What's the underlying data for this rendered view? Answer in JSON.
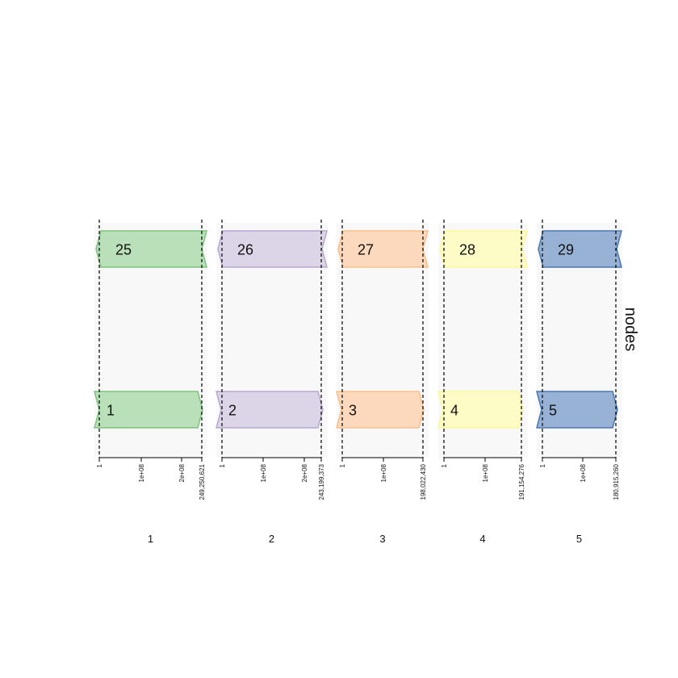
{
  "facet_label": "nodes",
  "panels": [
    {
      "id": "1",
      "label": "1",
      "fill": "#b9e0b9",
      "stroke": "#7cc47c",
      "top_node": "25",
      "bottom_node": "1",
      "length_label": "249,250,621",
      "ticks": [
        {
          "label": "1"
        },
        {
          "label": "1e+08"
        },
        {
          "label": "2e+08"
        }
      ]
    },
    {
      "id": "2",
      "label": "2",
      "fill": "#dcd5e8",
      "stroke": "#b7a7d1",
      "top_node": "26",
      "bottom_node": "2",
      "length_label": "243,199,373",
      "ticks": [
        {
          "label": "1"
        },
        {
          "label": "1e+08"
        },
        {
          "label": "2e+08"
        }
      ]
    },
    {
      "id": "3",
      "label": "3",
      "fill": "#fcd9bd",
      "stroke": "#f8bf8b",
      "top_node": "27",
      "bottom_node": "3",
      "length_label": "198,022,430",
      "ticks": [
        {
          "label": "1"
        },
        {
          "label": "1e+08"
        }
      ]
    },
    {
      "id": "4",
      "label": "4",
      "fill": "#fdfcc7",
      "stroke": "#fbf89a",
      "top_node": "28",
      "bottom_node": "4",
      "length_label": "191,154,276",
      "ticks": [
        {
          "label": "1"
        },
        {
          "label": "1e+08"
        }
      ]
    },
    {
      "id": "5",
      "label": "5",
      "fill": "#98b2d5",
      "stroke": "#4a77b0",
      "top_node": "29",
      "bottom_node": "5",
      "length_label": "180,915,260",
      "ticks": [
        {
          "label": "1"
        },
        {
          "label": "1e+08"
        }
      ]
    }
  ]
}
